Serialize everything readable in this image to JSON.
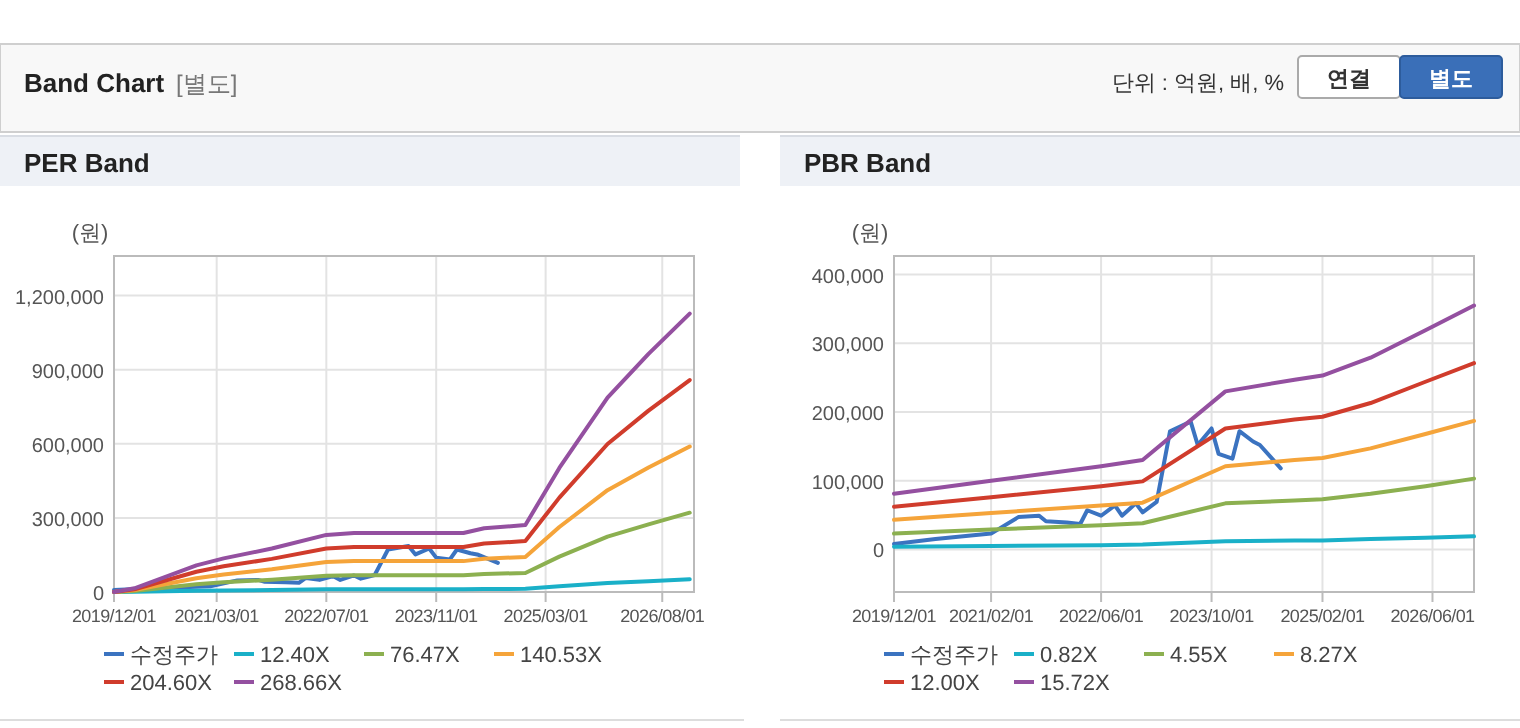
{
  "chart_data": [
    {
      "type": "other",
      "title": "Band Chart",
      "annotations": [
        "[별도]",
        "단위 : 억원, 배, %",
        "연결",
        "별도"
      ]
    },
    {
      "type": "line",
      "title": "PER Band",
      "ylabel": "(원)",
      "xlim": [
        "2019-12-01",
        "2026-12-20"
      ],
      "xticks": [
        {
          "value": "2019-12-01",
          "label": "2019/12/01"
        },
        {
          "value": "2021-03-01",
          "label": "2021/03/01"
        },
        {
          "value": "2022-07-01",
          "label": "2022/07/01"
        },
        {
          "value": "2023-11-01",
          "label": "2023/11/01"
        },
        {
          "value": "2025-03-01",
          "label": "2025/03/01"
        },
        {
          "value": "2026-08-01",
          "label": "2026/08/01"
        }
      ],
      "ylim": [
        0,
        1360000
      ],
      "yticks": [
        0,
        {
          "value": 300000,
          "label": "300,000"
        },
        {
          "value": 600000,
          "label": "600,000"
        },
        {
          "value": 900000,
          "label": "900,000"
        },
        {
          "value": 1200000,
          "label": "1,200,000"
        }
      ],
      "grid": true,
      "legend": "bottom",
      "series": [
        {
          "name": "수정주가",
          "color": "#3b73c0",
          "x": [
            "2019-12",
            "2020-06",
            "2021-02",
            "2021-06",
            "2021-09",
            "2021-10",
            "2022-01",
            "2022-03",
            "2022-04",
            "2022-06",
            "2022-08",
            "2022-09",
            "2022-11",
            "2022-12",
            "2023-02",
            "2023-03",
            "2023-04",
            "2023-07",
            "2023-08",
            "2023-10",
            "2023-11",
            "2024-01",
            "2024-02",
            "2024-04",
            "2024-05",
            "2024-08"
          ],
          "values": [
            8000,
            15000,
            23000,
            47000,
            49000,
            41000,
            39000,
            37000,
            57000,
            49000,
            64000,
            49000,
            67000,
            54000,
            69000,
            118000,
            172000,
            186000,
            152000,
            176000,
            139000,
            132000,
            172000,
            157000,
            152000,
            118000
          ]
        },
        {
          "name": "12.40X",
          "color": "#1ab0c8",
          "x": [
            "2019-12",
            "2020-03",
            "2020-12",
            "2021-04",
            "2021-11",
            "2022-07",
            "2022-11",
            "2024-03",
            "2024-06",
            "2024-12",
            "2025-05",
            "2025-12",
            "2026-06",
            "2026-12"
          ],
          "values": [
            0,
            1000,
            5000,
            6000,
            8000,
            11000,
            11000,
            11000,
            12000,
            13000,
            23000,
            36000,
            44000,
            52000
          ]
        },
        {
          "name": "76.47X",
          "color": "#8cb050",
          "x": [
            "2019-12",
            "2020-03",
            "2020-12",
            "2021-04",
            "2021-11",
            "2022-07",
            "2022-11",
            "2024-03",
            "2024-06",
            "2024-12",
            "2025-05",
            "2025-12",
            "2026-06",
            "2026-12"
          ],
          "values": [
            0,
            4000,
            31000,
            39000,
            50000,
            66000,
            68000,
            68000,
            73000,
            77000,
            143000,
            224000,
            274000,
            321000
          ]
        },
        {
          "name": "140.53X",
          "color": "#f5a43a",
          "x": [
            "2019-12",
            "2020-03",
            "2020-12",
            "2021-04",
            "2021-11",
            "2022-07",
            "2022-11",
            "2024-03",
            "2024-06",
            "2024-12",
            "2025-05",
            "2025-12",
            "2026-06",
            "2026-12"
          ],
          "values": [
            0,
            8000,
            56000,
            71000,
            92000,
            121000,
            125000,
            125000,
            135000,
            142000,
            263000,
            412000,
            504000,
            589000
          ]
        },
        {
          "name": "204.60X",
          "color": "#d03c2c",
          "x": [
            "2019-12",
            "2020-03",
            "2020-12",
            "2021-04",
            "2021-11",
            "2022-07",
            "2022-11",
            "2024-03",
            "2024-06",
            "2024-12",
            "2025-05",
            "2025-12",
            "2026-06",
            "2026-12"
          ],
          "values": [
            0,
            11000,
            82000,
            104000,
            134000,
            176000,
            182000,
            182000,
            196000,
            206000,
            382000,
            599000,
            734000,
            858000
          ]
        },
        {
          "name": "268.66X",
          "color": "#9450a0",
          "x": [
            "2019-12",
            "2020-03",
            "2020-12",
            "2021-04",
            "2021-11",
            "2022-07",
            "2022-11",
            "2024-03",
            "2024-06",
            "2024-12",
            "2025-05",
            "2025-12",
            "2026-06",
            "2026-12"
          ],
          "values": [
            0,
            15000,
            108000,
            136000,
            176000,
            231000,
            239000,
            239000,
            258000,
            271000,
            502000,
            787000,
            964000,
            1127000
          ]
        }
      ]
    },
    {
      "type": "line",
      "title": "PBR Band",
      "ylabel": "(원)",
      "xlim": [
        "2019-12-01",
        "2026-12-01"
      ],
      "xticks": [
        {
          "value": "2019-12-01",
          "label": "2019/12/01"
        },
        {
          "value": "2021-02-01",
          "label": "2021/02/01"
        },
        {
          "value": "2022-06-01",
          "label": "2022/06/01"
        },
        {
          "value": "2023-10-01",
          "label": "2023/10/01"
        },
        {
          "value": "2025-02-01",
          "label": "2025/02/01"
        },
        {
          "value": "2026-06-01",
          "label": "2026/06/01"
        }
      ],
      "ylim": [
        -62000,
        427000
      ],
      "yticks": [
        0,
        {
          "value": 100000,
          "label": "100,000"
        },
        {
          "value": 200000,
          "label": "200,000"
        },
        {
          "value": 300000,
          "label": "300,000"
        },
        {
          "value": 400000,
          "label": "400,000"
        }
      ],
      "grid": true,
      "legend": "bottom",
      "series": [
        {
          "name": "수정주가",
          "color": "#3b73c0",
          "x": [
            "2019-12",
            "2020-06",
            "2021-02",
            "2021-06",
            "2021-09",
            "2021-10",
            "2022-01",
            "2022-03",
            "2022-04",
            "2022-06",
            "2022-08",
            "2022-09",
            "2022-11",
            "2022-12",
            "2023-02",
            "2023-03",
            "2023-04",
            "2023-07",
            "2023-08",
            "2023-10",
            "2023-11",
            "2024-01",
            "2024-02",
            "2024-04",
            "2024-05",
            "2024-08"
          ],
          "values": [
            8000,
            15000,
            23000,
            47000,
            49000,
            41000,
            39000,
            37000,
            57000,
            49000,
            64000,
            49000,
            67000,
            54000,
            69000,
            118000,
            172000,
            186000,
            152000,
            176000,
            139000,
            132000,
            172000,
            157000,
            152000,
            118000
          ]
        },
        {
          "name": "0.82X",
          "color": "#1ab0c8",
          "x": [
            "2019-12",
            "2021-02",
            "2022-06",
            "2022-12",
            "2023-12",
            "2024-10",
            "2025-02",
            "2025-09",
            "2026-05",
            "2026-12"
          ],
          "values": [
            4000,
            5000,
            6000,
            7000,
            12000,
            13000,
            13000,
            15000,
            17000,
            19000
          ]
        },
        {
          "name": "4.55X",
          "color": "#8cb050",
          "x": [
            "2019-12",
            "2021-02",
            "2022-06",
            "2022-12",
            "2023-12",
            "2024-10",
            "2025-02",
            "2025-09",
            "2026-05",
            "2026-12"
          ],
          "values": [
            23000,
            29000,
            35000,
            38000,
            67000,
            71000,
            73000,
            81000,
            92000,
            103000
          ]
        },
        {
          "name": "8.27X",
          "color": "#f5a43a",
          "x": [
            "2019-12",
            "2021-02",
            "2022-06",
            "2022-12",
            "2023-12",
            "2024-10",
            "2025-02",
            "2025-09",
            "2026-05",
            "2026-12"
          ],
          "values": [
            43000,
            53000,
            64000,
            68000,
            121000,
            130000,
            133000,
            147000,
            168000,
            187000
          ]
        },
        {
          "name": "12.00X",
          "color": "#d03c2c",
          "x": [
            "2019-12",
            "2021-02",
            "2022-06",
            "2022-12",
            "2023-12",
            "2024-10",
            "2025-02",
            "2025-09",
            "2026-05",
            "2026-12"
          ],
          "values": [
            62000,
            76000,
            92000,
            99000,
            176000,
            189000,
            193000,
            213000,
            244000,
            271000
          ]
        },
        {
          "name": "15.72X",
          "color": "#9450a0",
          "x": [
            "2019-12",
            "2021-02",
            "2022-06",
            "2022-12",
            "2023-12",
            "2024-10",
            "2025-02",
            "2025-09",
            "2026-05",
            "2026-12"
          ],
          "values": [
            81000,
            100000,
            121000,
            130000,
            230000,
            247000,
            253000,
            279000,
            319000,
            355000
          ]
        }
      ]
    }
  ]
}
